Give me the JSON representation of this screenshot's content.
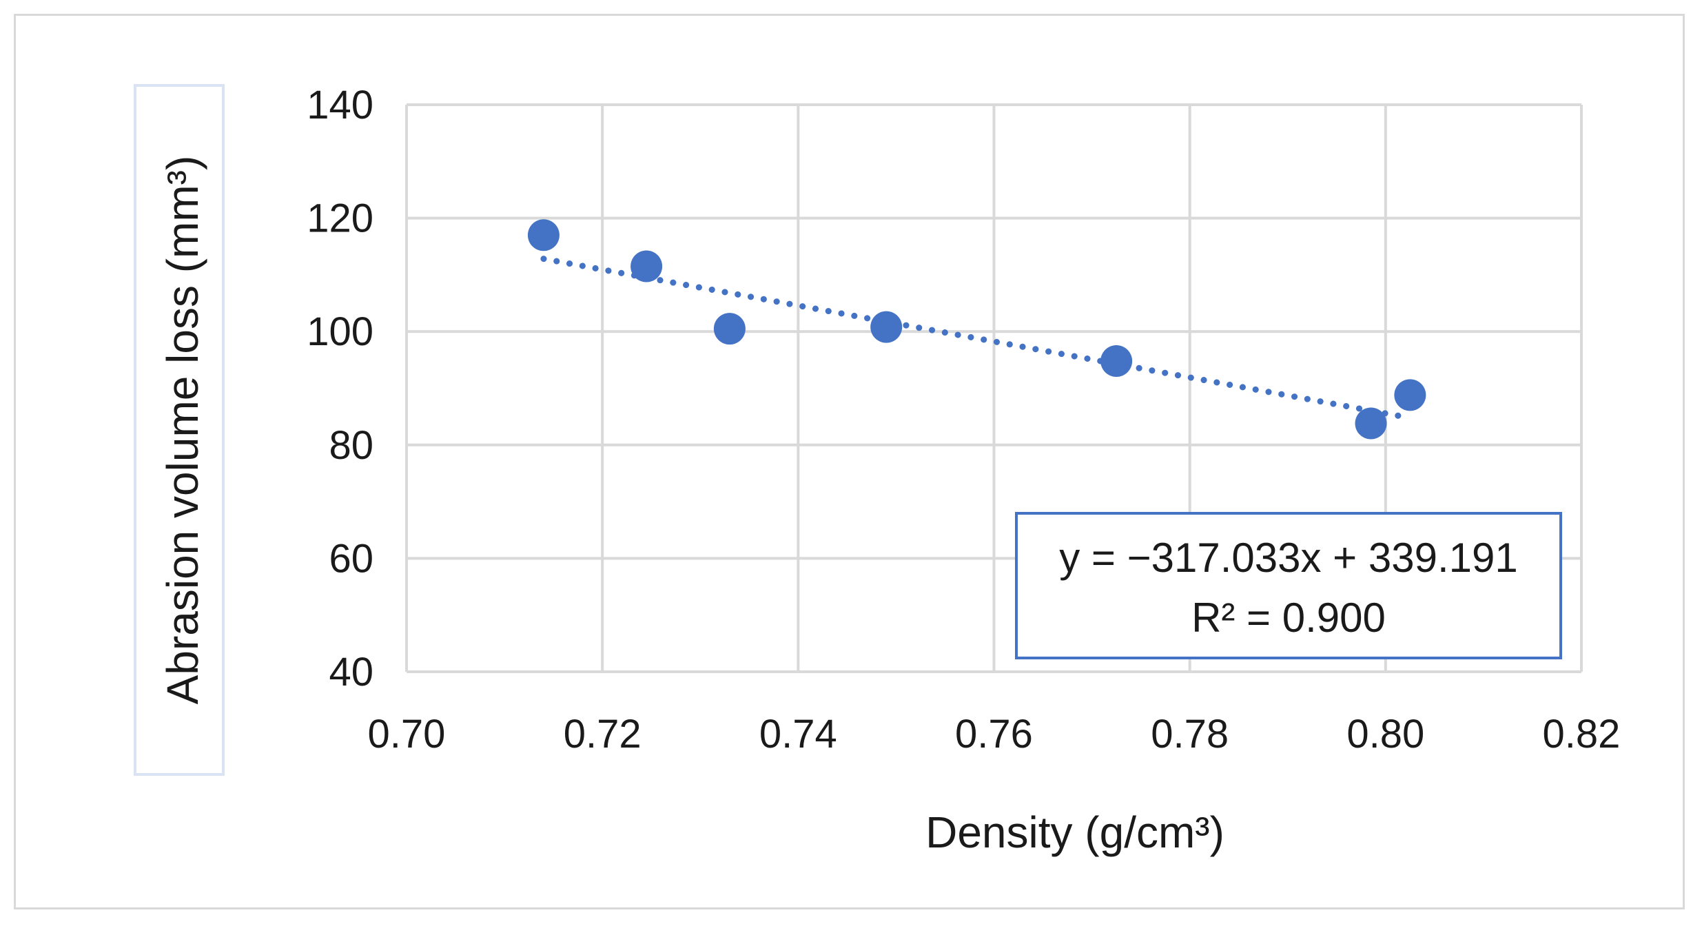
{
  "chart_data": {
    "type": "scatter",
    "title": "",
    "xlabel": "Density  (g/cm³)",
    "ylabel": "Abrasion volume loss (mm³)",
    "xlim": [
      0.7,
      0.82
    ],
    "ylim": [
      40,
      140
    ],
    "x_ticks": [
      "0.70",
      "0.72",
      "0.74",
      "0.76",
      "0.78",
      "0.80",
      "0.82"
    ],
    "y_ticks": [
      "40",
      "60",
      "80",
      "100",
      "120",
      "140"
    ],
    "grid": true,
    "points": [
      {
        "x": 0.714,
        "y": 117.0
      },
      {
        "x": 0.7245,
        "y": 111.5
      },
      {
        "x": 0.733,
        "y": 100.5
      },
      {
        "x": 0.749,
        "y": 100.8
      },
      {
        "x": 0.7725,
        "y": 94.8
      },
      {
        "x": 0.7985,
        "y": 83.8
      },
      {
        "x": 0.8025,
        "y": 88.8
      }
    ],
    "trendline": {
      "type": "linear",
      "style": "dotted",
      "slope": -317.033,
      "intercept": 339.191,
      "x_range": [
        0.714,
        0.8025
      ],
      "equation_label": "y = −317.033x + 339.191",
      "r2_label": "R² = 0.900",
      "box_placement": "bottom-right"
    },
    "colors": {
      "marker": "#4472c4",
      "trendline": "#4472c4",
      "grid": "#d9d9d9",
      "equation_border": "#4472c4",
      "ylabel_border": "#dae3f3"
    }
  }
}
